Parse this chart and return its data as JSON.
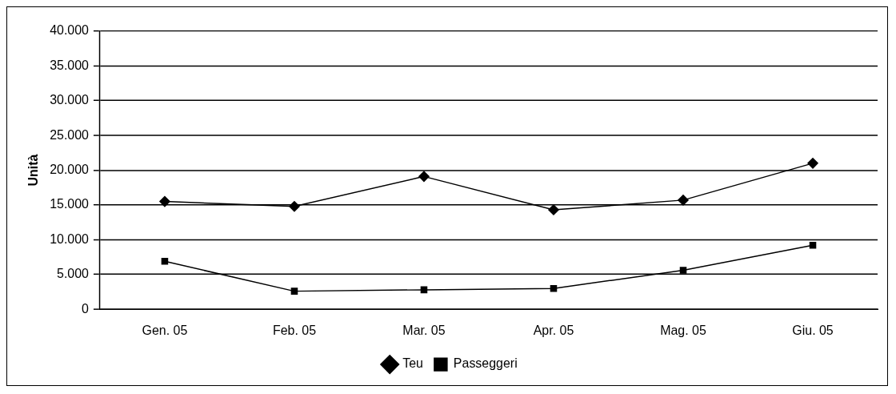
{
  "chart_data": {
    "type": "line",
    "ylabel": "Unità",
    "categories": [
      "Gen. 05",
      "Feb. 05",
      "Mar. 05",
      "Apr. 05",
      "Mag. 05",
      "Giu. 05"
    ],
    "series": [
      {
        "name": "Teu",
        "color": "#000000",
        "marker": "diamond",
        "values": [
          15500,
          14800,
          19100,
          14300,
          15700,
          21000
        ]
      },
      {
        "name": "Passeggeri",
        "color": "#000000",
        "marker": "square",
        "values": [
          6900,
          2600,
          2800,
          3000,
          5600,
          9200
        ]
      }
    ],
    "ylim": [
      0,
      40000
    ],
    "yticks": [
      {
        "value": 0,
        "label": "0"
      },
      {
        "value": 5000,
        "label": "5.000"
      },
      {
        "value": 10000,
        "label": "10.000"
      },
      {
        "value": 15000,
        "label": "15.000"
      },
      {
        "value": 20000,
        "label": "20.000"
      },
      {
        "value": 25000,
        "label": "25.000"
      },
      {
        "value": 30000,
        "label": "30.000"
      },
      {
        "value": 35000,
        "label": "35.000"
      },
      {
        "value": 40000,
        "label": "40.000"
      }
    ],
    "grid": "y",
    "legend": "bottom",
    "line_style": "solid"
  }
}
